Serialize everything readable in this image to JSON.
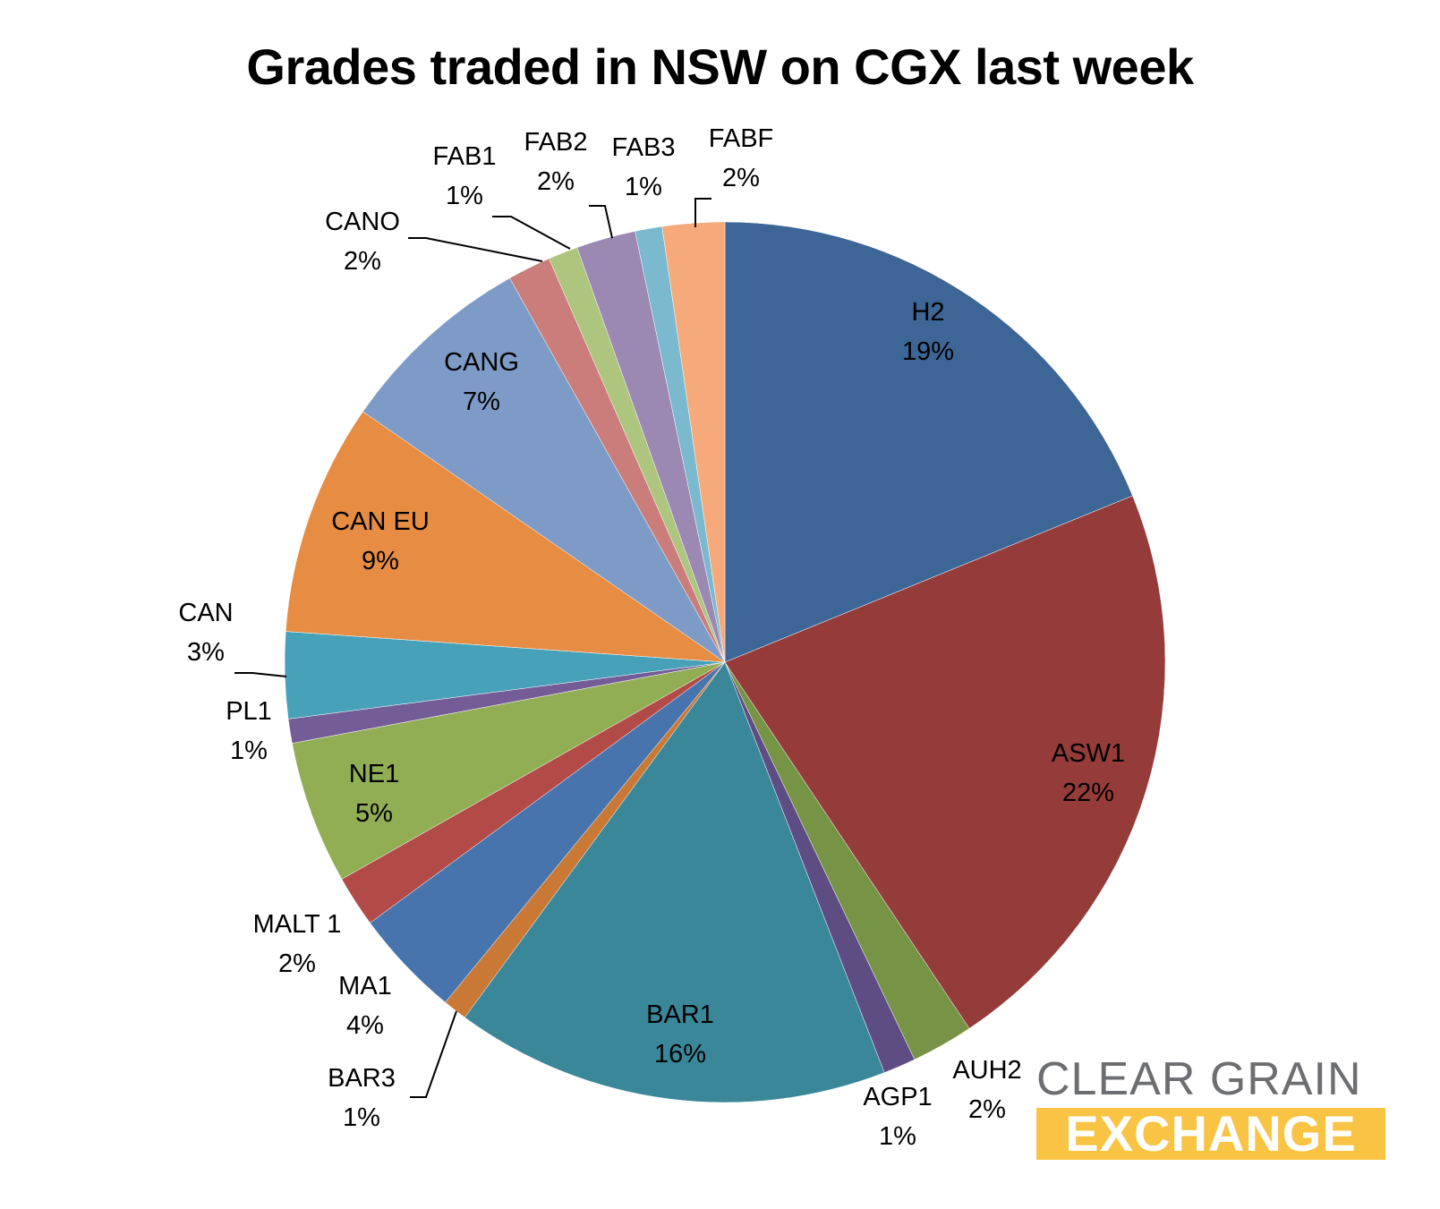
{
  "chart_data": {
    "type": "pie",
    "title": "Grades traded in NSW on CGX last week",
    "slices": [
      {
        "name": "H2",
        "pct_label": "19%",
        "value": 19.0,
        "color": "#3d6596"
      },
      {
        "name": "ASW1",
        "pct_label": "22%",
        "value": 22.0,
        "color": "#953b3a"
      },
      {
        "name": "AUH2",
        "pct_label": "2%",
        "value": 2.3,
        "color": "#779345"
      },
      {
        "name": "AGP1",
        "pct_label": "1%",
        "value": 1.2,
        "color": "#5e4d83"
      },
      {
        "name": "BAR1",
        "pct_label": "16%",
        "value": 16.1,
        "color": "#3a8799"
      },
      {
        "name": "BAR3",
        "pct_label": "1%",
        "value": 0.9,
        "color": "#c97836"
      },
      {
        "name": "MA1",
        "pct_label": "4%",
        "value": 4.0,
        "color": "#4774ac"
      },
      {
        "name": "MALT 1",
        "pct_label": "2%",
        "value": 1.9,
        "color": "#b24a47"
      },
      {
        "name": "NE1",
        "pct_label": "5%",
        "value": 5.3,
        "color": "#92ae55"
      },
      {
        "name": "PL1",
        "pct_label": "1%",
        "value": 0.9,
        "color": "#745c97"
      },
      {
        "name": "CAN",
        "pct_label": "3%",
        "value": 3.2,
        "color": "#46a1b9"
      },
      {
        "name": "CAN EU",
        "pct_label": "9%",
        "value": 8.6,
        "color": "#e68c43"
      },
      {
        "name": "CANG",
        "pct_label": "7%",
        "value": 7.3,
        "color": "#7e9bc7"
      },
      {
        "name": "CANO",
        "pct_label": "2%",
        "value": 1.6,
        "color": "#cb7d7c"
      },
      {
        "name": "FAB1",
        "pct_label": "1%",
        "value": 1.1,
        "color": "#adc57f"
      },
      {
        "name": "FAB2",
        "pct_label": "2%",
        "value": 2.2,
        "color": "#9b88b3"
      },
      {
        "name": "FAB3",
        "pct_label": "1%",
        "value": 1.0,
        "color": "#7bb9ce"
      },
      {
        "name": "FABF",
        "pct_label": "2%",
        "value": 2.3,
        "color": "#f6a97a"
      }
    ]
  },
  "logo": {
    "line1": "CLEAR GRAIN",
    "line2": "EXCHANGE",
    "text_color": "#6d6e71",
    "band_color": "#f9c443"
  }
}
